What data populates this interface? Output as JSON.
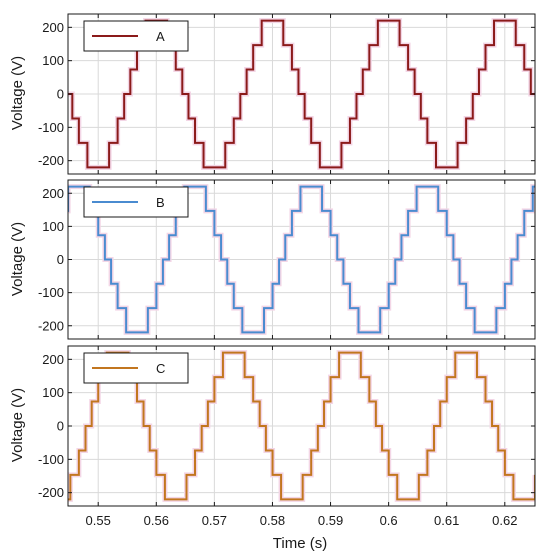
{
  "chart_data": {
    "type": "line",
    "xlabel": "Time (s)",
    "xlim": [
      0.5448,
      0.6252
    ],
    "x_ticks": [
      0.55,
      0.56,
      0.57,
      0.58,
      0.59,
      0.6,
      0.61,
      0.62
    ],
    "x_tick_labels": [
      "0.55",
      "0.56",
      "0.57",
      "0.58",
      "0.59",
      "0.6",
      "0.61",
      "0.62"
    ],
    "grid": true,
    "legend_position": "top-left",
    "subplots": [
      {
        "ylabel": "Voltage (V)",
        "ylim": [
          -240,
          240
        ],
        "y_ticks": [
          -200,
          -100,
          0,
          100,
          200
        ],
        "y_tick_labels": [
          "-200",
          "-100",
          "0",
          "100",
          "200"
        ],
        "series": [
          {
            "name": "A",
            "color": "#8B1A1A",
            "waveform": "7-level staircase",
            "amplitude": 220,
            "frequency_hz": 50,
            "phase_deg": 90
          }
        ]
      },
      {
        "ylabel": "Voltage (V)",
        "ylim": [
          -240,
          240
        ],
        "y_ticks": [
          -200,
          -100,
          0,
          100,
          200
        ],
        "y_tick_labels": [
          "-200",
          "-100",
          "0",
          "100",
          "200"
        ],
        "series": [
          {
            "name": "B",
            "color": "#4A8BD0",
            "waveform": "7-level staircase",
            "amplitude": 220,
            "frequency_hz": 50,
            "phase_deg": -30
          }
        ]
      },
      {
        "ylabel": "Voltage (V)",
        "ylim": [
          -240,
          240
        ],
        "y_ticks": [
          -200,
          -100,
          0,
          100,
          200
        ],
        "y_tick_labels": [
          "-200",
          "-100",
          "0",
          "100",
          "200"
        ],
        "series": [
          {
            "name": "C",
            "color": "#C2761F",
            "waveform": "7-level staircase",
            "amplitude": 220,
            "frequency_hz": 50,
            "phase_deg": -150
          }
        ]
      }
    ]
  }
}
